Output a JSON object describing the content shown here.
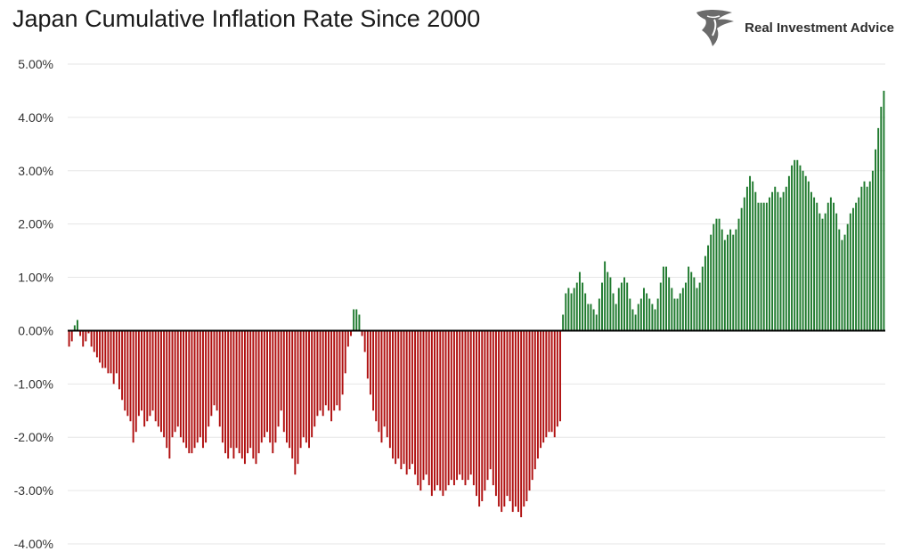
{
  "title": "Japan Cumulative Inflation Rate Since 2000",
  "brand": {
    "name": "Real Investment Advice"
  },
  "colors": {
    "positive": "#1f7a2e",
    "negative": "#b01010",
    "zero_line": "#000000",
    "grid": "#e6e6e6"
  },
  "chart_data": {
    "type": "bar",
    "title": "Japan Cumulative Inflation Rate Since 2000",
    "xlabel": "",
    "ylabel": "",
    "ylim": [
      -4,
      5
    ],
    "y_ticks": [
      "5.00%",
      "4.00%",
      "3.00%",
      "2.00%",
      "1.00%",
      "0.00%",
      "-1.00%",
      "-2.00%",
      "-3.00%",
      "-4.00%"
    ],
    "grid": true,
    "legend": "none",
    "values": [
      -0.3,
      -0.2,
      0.1,
      0.2,
      -0.1,
      -0.3,
      -0.2,
      -0.05,
      -0.3,
      -0.4,
      -0.5,
      -0.6,
      -0.7,
      -0.7,
      -0.8,
      -0.8,
      -1.0,
      -0.8,
      -1.1,
      -1.3,
      -1.5,
      -1.6,
      -1.7,
      -2.1,
      -1.9,
      -1.6,
      -1.5,
      -1.8,
      -1.7,
      -1.6,
      -1.5,
      -1.7,
      -1.8,
      -1.9,
      -2.0,
      -2.2,
      -2.4,
      -2.0,
      -1.9,
      -1.8,
      -2.0,
      -2.1,
      -2.2,
      -2.3,
      -2.3,
      -2.2,
      -2.1,
      -2.0,
      -2.2,
      -2.1,
      -1.8,
      -1.6,
      -1.4,
      -1.5,
      -1.8,
      -2.1,
      -2.3,
      -2.4,
      -2.2,
      -2.4,
      -2.2,
      -2.3,
      -2.4,
      -2.5,
      -2.3,
      -2.2,
      -2.4,
      -2.5,
      -2.3,
      -2.1,
      -2.0,
      -1.9,
      -2.1,
      -2.3,
      -2.1,
      -1.8,
      -1.5,
      -1.9,
      -2.1,
      -2.2,
      -2.4,
      -2.7,
      -2.5,
      -2.2,
      -2.0,
      -2.1,
      -2.2,
      -2.0,
      -1.8,
      -1.6,
      -1.5,
      -1.6,
      -1.4,
      -1.5,
      -1.7,
      -1.5,
      -1.4,
      -1.5,
      -1.2,
      -0.8,
      -0.3,
      -0.1,
      0.4,
      0.4,
      0.3,
      -0.1,
      -0.4,
      -0.9,
      -1.2,
      -1.5,
      -1.7,
      -1.9,
      -2.1,
      -1.8,
      -2.0,
      -2.2,
      -2.4,
      -2.5,
      -2.4,
      -2.6,
      -2.5,
      -2.7,
      -2.6,
      -2.5,
      -2.7,
      -2.9,
      -3.0,
      -2.8,
      -2.7,
      -2.9,
      -3.1,
      -3.0,
      -2.9,
      -3.0,
      -3.1,
      -3.0,
      -2.9,
      -2.8,
      -2.9,
      -2.8,
      -2.7,
      -2.8,
      -2.9,
      -2.8,
      -2.7,
      -2.9,
      -3.1,
      -3.3,
      -3.2,
      -3.0,
      -2.8,
      -2.6,
      -2.9,
      -3.1,
      -3.3,
      -3.4,
      -3.3,
      -3.1,
      -3.2,
      -3.4,
      -3.3,
      -3.4,
      -3.5,
      -3.3,
      -3.2,
      -3.0,
      -2.8,
      -2.6,
      -2.4,
      -2.2,
      -2.1,
      -2.0,
      -1.9,
      -1.9,
      -2.0,
      -1.8,
      -1.7,
      0.3,
      0.7,
      0.8,
      0.7,
      0.8,
      0.9,
      1.1,
      0.9,
      0.7,
      0.5,
      0.5,
      0.4,
      0.3,
      0.6,
      0.9,
      1.3,
      1.1,
      1.0,
      0.7,
      0.5,
      0.8,
      0.9,
      1.0,
      0.9,
      0.6,
      0.4,
      0.3,
      0.5,
      0.6,
      0.8,
      0.7,
      0.6,
      0.5,
      0.4,
      0.6,
      0.9,
      1.2,
      1.2,
      1.0,
      0.8,
      0.6,
      0.6,
      0.7,
      0.8,
      0.9,
      1.2,
      1.1,
      1.0,
      0.8,
      0.9,
      1.2,
      1.4,
      1.6,
      1.8,
      2.0,
      2.1,
      2.1,
      1.9,
      1.7,
      1.8,
      1.9,
      1.8,
      1.9,
      2.1,
      2.3,
      2.5,
      2.7,
      2.9,
      2.8,
      2.6,
      2.4,
      2.4,
      2.4,
      2.4,
      2.5,
      2.6,
      2.7,
      2.6,
      2.5,
      2.6,
      2.7,
      2.9,
      3.1,
      3.2,
      3.2,
      3.1,
      3.0,
      2.9,
      2.8,
      2.6,
      2.5,
      2.4,
      2.2,
      2.1,
      2.2,
      2.4,
      2.5,
      2.4,
      2.2,
      1.9,
      1.7,
      1.8,
      2.0,
      2.2,
      2.3,
      2.4,
      2.5,
      2.7,
      2.8,
      2.7,
      2.8,
      3.0,
      3.4,
      3.8,
      4.2,
      4.5
    ]
  }
}
